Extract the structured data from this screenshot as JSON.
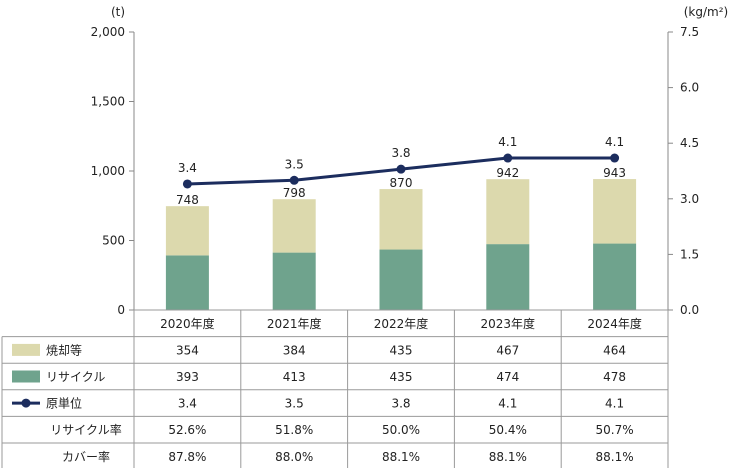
{
  "chart_data": {
    "type": "bar",
    "stacked": true,
    "categories": [
      "2020年度",
      "2021年度",
      "2022年度",
      "2023年度",
      "2024年度"
    ],
    "y_left": {
      "unit": "(t)",
      "ylim": [
        0,
        2000
      ],
      "ticks": [
        "0",
        "500",
        "1,000",
        "1,500",
        "2,000"
      ]
    },
    "y_right": {
      "unit": "(kg/m²)",
      "ylim": [
        0,
        7.5
      ],
      "ticks": [
        "0.0",
        "1.5",
        "3.0",
        "4.5",
        "6.0",
        "7.5"
      ]
    },
    "totals": [
      "748",
      "798",
      "870",
      "942",
      "943"
    ],
    "series": [
      {
        "name": "リサイクル",
        "type": "bar",
        "axis": "left",
        "color": "#6fa38d",
        "values": [
          393,
          413,
          435,
          474,
          478
        ],
        "table": [
          "393",
          "413",
          "435",
          "474",
          "478"
        ]
      },
      {
        "name": "焼却等",
        "type": "bar",
        "axis": "left",
        "color": "#dcd9ad",
        "values": [
          354,
          384,
          435,
          467,
          464
        ],
        "table": [
          "354",
          "384",
          "435",
          "467",
          "464"
        ]
      },
      {
        "name": "原単位",
        "type": "line",
        "axis": "right",
        "color": "#1c2d5e",
        "values": [
          3.4,
          3.5,
          3.8,
          4.1,
          4.1
        ],
        "labels": [
          "3.4",
          "3.5",
          "3.8",
          "4.1",
          "4.1"
        ],
        "table": [
          "3.4",
          "3.5",
          "3.8",
          "4.1",
          "4.1"
        ]
      }
    ],
    "table_rows": [
      {
        "label": "焼却等",
        "series": 1
      },
      {
        "label": "リサイクル",
        "series": 0
      },
      {
        "label": "原単位",
        "series": 2
      },
      {
        "label": "リサイクル率",
        "values": [
          "52.6%",
          "51.8%",
          "50.0%",
          "50.4%",
          "50.7%"
        ]
      },
      {
        "label": "カバー率",
        "values": [
          "87.8%",
          "88.0%",
          "88.1%",
          "88.1%",
          "88.1%"
        ]
      }
    ],
    "label_color": "#1c2d5e",
    "grid": false
  }
}
